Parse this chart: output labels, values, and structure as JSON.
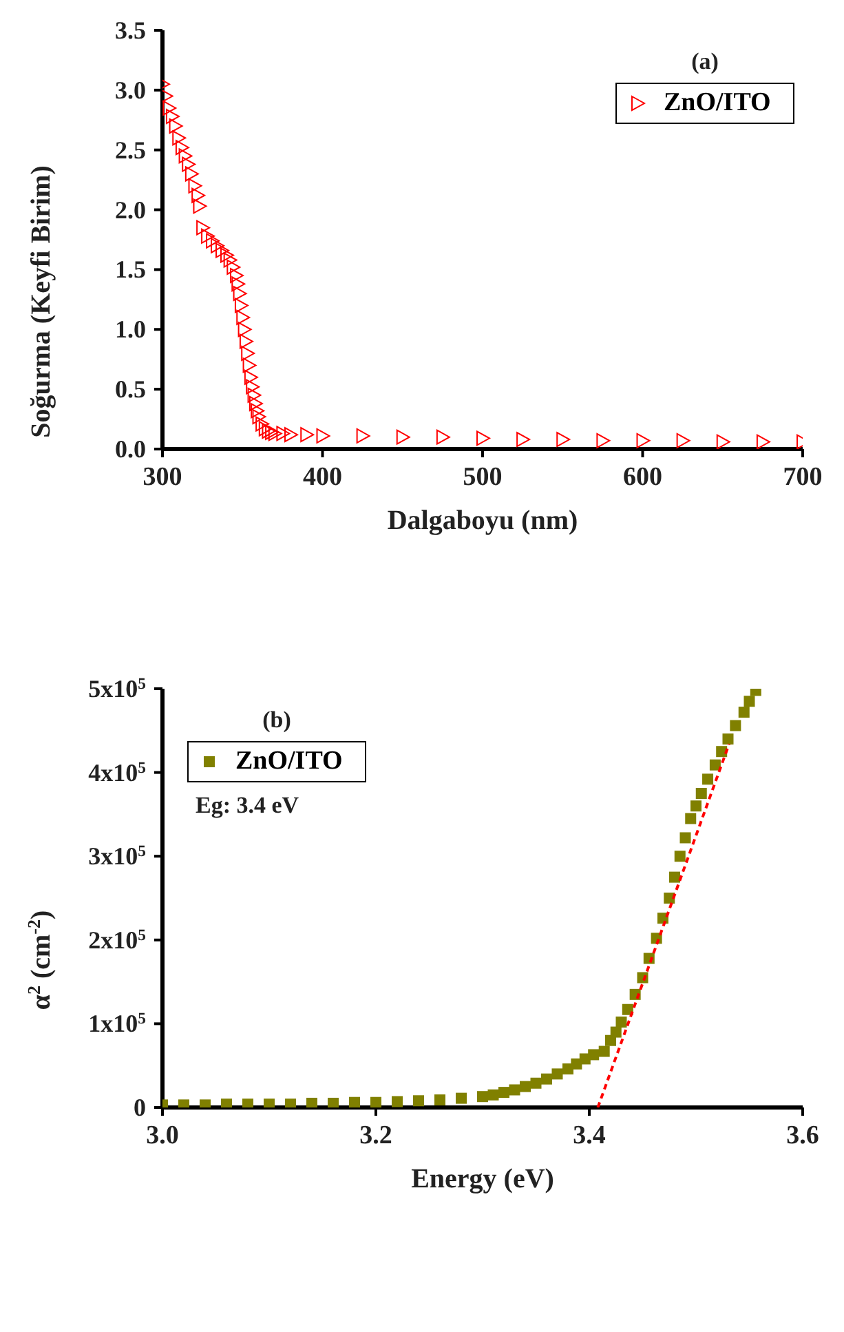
{
  "chart_data": [
    {
      "type": "scatter",
      "xlabel": "Dalgaboyu (nm)",
      "ylabel": "Soğurma (Keyfi Birim)",
      "annotations": [
        "(a)"
      ],
      "xlim": [
        300,
        700
      ],
      "xticks": [
        300,
        400,
        500,
        600,
        700
      ],
      "ylim": [
        0,
        3.5
      ],
      "yticks": [
        {
          "value": 0,
          "label": "0.0"
        },
        0.5,
        {
          "value": 1,
          "label": "1.0"
        },
        1.5,
        {
          "value": 2,
          "label": "2.0"
        },
        2.5,
        {
          "value": 3,
          "label": "3.0"
        },
        3.5
      ],
      "legend": "top right",
      "marker": "triangle",
      "series": [
        {
          "name": "ZnO/ITO",
          "color": "#ff0000",
          "x": [
            300,
            302,
            304,
            306,
            308,
            310,
            312,
            314,
            316,
            318,
            320,
            322,
            323,
            325,
            328,
            331,
            334,
            337,
            340,
            342,
            344,
            346,
            347,
            348,
            349,
            350,
            351,
            352,
            353,
            354,
            355,
            356,
            357,
            358,
            359,
            360,
            362,
            364,
            366,
            368,
            370,
            375,
            380,
            390,
            400,
            425,
            450,
            475,
            500,
            525,
            550,
            575,
            600,
            625,
            650,
            675,
            700
          ],
          "values": [
            3.05,
            2.95,
            2.85,
            2.78,
            2.7,
            2.6,
            2.52,
            2.45,
            2.38,
            2.3,
            2.2,
            2.12,
            2.03,
            1.85,
            1.78,
            1.74,
            1.7,
            1.66,
            1.62,
            1.58,
            1.52,
            1.45,
            1.38,
            1.3,
            1.2,
            1.1,
            1.0,
            0.9,
            0.8,
            0.7,
            0.6,
            0.52,
            0.45,
            0.38,
            0.32,
            0.27,
            0.21,
            0.17,
            0.15,
            0.14,
            0.13,
            0.13,
            0.12,
            0.12,
            0.11,
            0.11,
            0.1,
            0.1,
            0.09,
            0.08,
            0.08,
            0.07,
            0.07,
            0.07,
            0.06,
            0.06,
            0.06
          ]
        }
      ]
    },
    {
      "type": "scatter",
      "xlabel": "Energy (eV)",
      "ylabel": "α$^{2}$ (cm$^{-2}$)",
      "annotations": [
        "(b)",
        "Eg: 3.4 eV"
      ],
      "xlim": [
        3.0,
        3.6
      ],
      "xticks": [
        {
          "value": 3,
          "label": "3.0"
        },
        3.2,
        3.4,
        3.6
      ],
      "ylim": [
        0,
        500000
      ],
      "yticks": [
        0,
        {
          "value": 100000,
          "label": "1x10$^{5}$"
        },
        {
          "value": 200000,
          "label": "2x10$^{5}$"
        },
        {
          "value": 300000,
          "label": "3x10$^{5}$"
        },
        {
          "value": 400000,
          "label": "4x10$^{5}$"
        },
        {
          "value": 500000,
          "label": "5x10$^{5}$"
        }
      ],
      "legend": "top left",
      "marker": "square",
      "series": [
        {
          "name": "ZnO/ITO",
          "color": "#808000",
          "x": [
            3.0,
            3.02,
            3.04,
            3.06,
            3.08,
            3.1,
            3.12,
            3.14,
            3.16,
            3.18,
            3.2,
            3.22,
            3.24,
            3.26,
            3.28,
            3.3,
            3.31,
            3.32,
            3.33,
            3.34,
            3.35,
            3.36,
            3.37,
            3.38,
            3.388,
            3.396,
            3.404,
            3.414,
            3.42,
            3.425,
            3.43,
            3.436,
            3.443,
            3.45,
            3.456,
            3.463,
            3.469,
            3.475,
            3.48,
            3.485,
            3.49,
            3.495,
            3.5,
            3.505,
            3.511,
            3.518,
            3.524,
            3.53,
            3.537,
            3.545,
            3.55,
            3.556
          ],
          "values": [
            3000,
            3000,
            3000,
            4000,
            4000,
            4000,
            4000,
            5000,
            5000,
            6000,
            6000,
            7000,
            8000,
            9000,
            11000,
            13000,
            15000,
            18000,
            21000,
            25000,
            29000,
            34000,
            40000,
            46000,
            52000,
            58000,
            63000,
            67000,
            80000,
            90000,
            102000,
            117000,
            135000,
            155000,
            178000,
            202000,
            226000,
            250000,
            275000,
            300000,
            322000,
            345000,
            360000,
            375000,
            392000,
            409000,
            425000,
            440000,
            456000,
            472000,
            485000,
            498000
          ]
        },
        {
          "type": "line",
          "color": "#ff0000",
          "line_style": "dashed",
          "marker": "none",
          "x": [
            3.408,
            3.531
          ],
          "values": [
            0,
            434000
          ]
        }
      ]
    }
  ]
}
